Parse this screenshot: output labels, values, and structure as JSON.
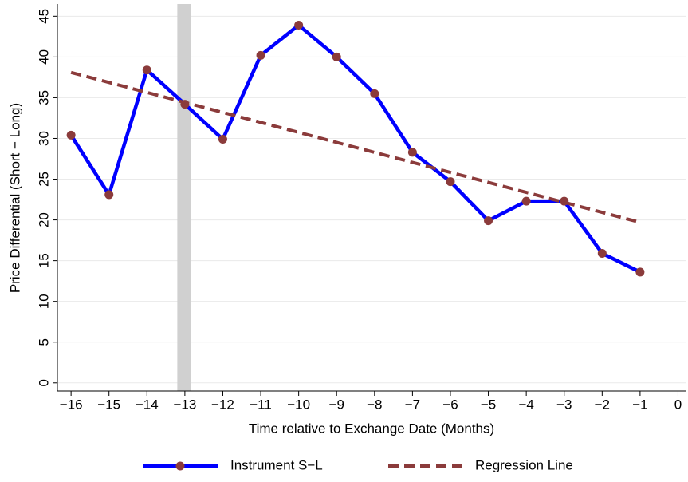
{
  "chart_data": {
    "type": "line",
    "x_label": "Time relative to Exchange Date (Months)",
    "y_label": "Price Differential (Short − Long)",
    "xlim": [
      -16.36,
      0.2
    ],
    "ylim": [
      -1,
      46.5
    ],
    "xticks": [
      {
        "value": -16,
        "label": "−16"
      },
      {
        "value": -15,
        "label": "−15"
      },
      {
        "value": -14,
        "label": "−14"
      },
      {
        "value": -13,
        "label": "−13"
      },
      {
        "value": -12,
        "label": "−12"
      },
      {
        "value": -11,
        "label": "−11"
      },
      {
        "value": -10,
        "label": "−10"
      },
      {
        "value": -9,
        "label": "−9"
      },
      {
        "value": -8,
        "label": "−8"
      },
      {
        "value": -7,
        "label": "−7"
      },
      {
        "value": -6,
        "label": "−6"
      },
      {
        "value": -5,
        "label": "−5"
      },
      {
        "value": -4,
        "label": "−4"
      },
      {
        "value": -3,
        "label": "−3"
      },
      {
        "value": -2,
        "label": "−2"
      },
      {
        "value": -1,
        "label": "−1"
      },
      0
    ],
    "yticks": [
      0,
      5,
      10,
      15,
      20,
      25,
      30,
      35,
      40,
      45
    ],
    "grid": true,
    "highlight": {
      "x": [
        -13.2,
        -12.85
      ],
      "color": "#d0d0d0"
    },
    "series": [
      {
        "name": "Instrument S−L",
        "color": "#0000ff",
        "marker_color": "#8b3b3b",
        "dashed": false,
        "x": [
          -16,
          -15,
          -14,
          -13,
          -12,
          -11,
          -10,
          -9,
          -8,
          -7,
          -6,
          -5,
          -4,
          -3,
          -2,
          -1
        ],
        "values": [
          30.4,
          23.1,
          38.4,
          34.2,
          29.9,
          40.2,
          43.9,
          40.0,
          35.5,
          28.3,
          24.7,
          19.9,
          22.3,
          22.3,
          15.9,
          13.6
        ]
      },
      {
        "name": "Regression Line",
        "color": "#8b3b3b",
        "dashed": true,
        "x": [
          -16,
          -1
        ],
        "values": [
          38.1,
          19.7
        ]
      }
    ]
  }
}
